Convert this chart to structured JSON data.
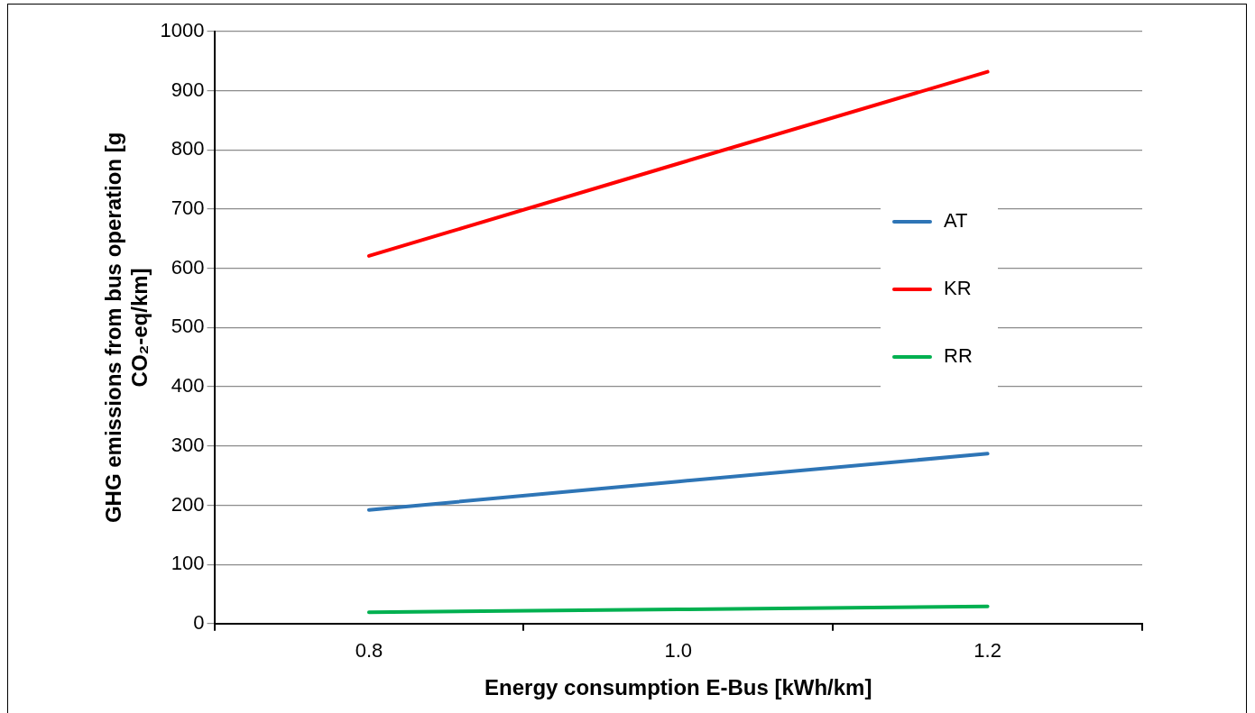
{
  "chart_data": {
    "type": "line",
    "xlabel": "Energy consumption E-Bus [kWh/km]",
    "ylabel": "GHG emissions from bus operation [g CO₂-eq/km]",
    "categories": [
      "0.8",
      "1.0",
      "1.2"
    ],
    "series": [
      {
        "name": "AT",
        "color": "#2e75b6",
        "values": [
          192,
          240,
          287
        ]
      },
      {
        "name": "KR",
        "color": "#ff0000",
        "values": [
          621,
          777,
          932
        ]
      },
      {
        "name": "RR",
        "color": "#00b050",
        "values": [
          19,
          24,
          29
        ]
      }
    ],
    "ylim": [
      0,
      1000
    ],
    "yticks": [
      0,
      100,
      200,
      300,
      400,
      500,
      600,
      700,
      800,
      900,
      1000
    ],
    "grid": "y",
    "legend": "right",
    "marker": "none",
    "line_style": "solid"
  }
}
